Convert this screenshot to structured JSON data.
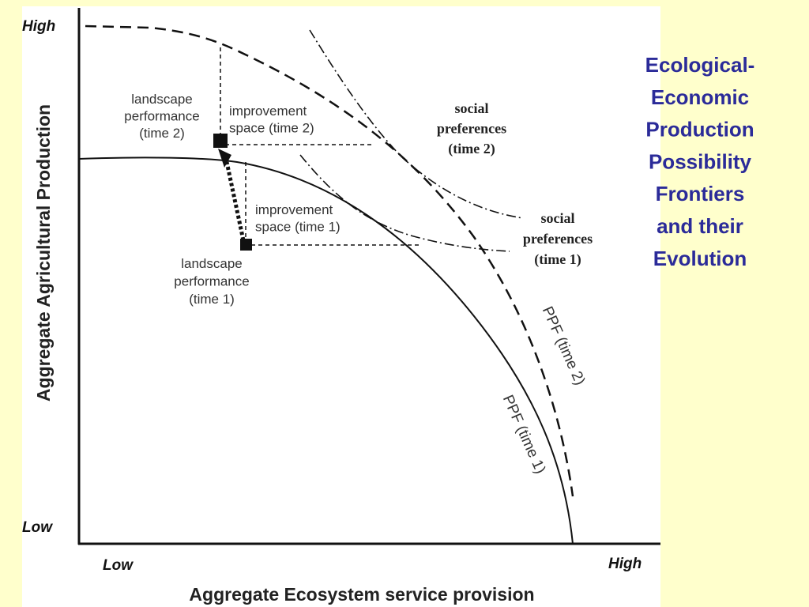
{
  "slide_title": [
    "Ecological-",
    "Economic",
    "Production",
    "Possibility",
    "Frontiers",
    "and their",
    "Evolution"
  ],
  "diagram": {
    "y_axis": {
      "title": "Aggregate Agricultural Production",
      "high": "High",
      "low": "Low"
    },
    "x_axis": {
      "title": "Aggregate Ecosystem service provision",
      "low": "Low",
      "high": "High"
    },
    "labels": {
      "landscape_performance_time2": [
        "landscape",
        "performance",
        "(time 2)"
      ],
      "improvement_space_time2": [
        "improvement",
        "space (time 2)"
      ],
      "social_preferences_time2": [
        "social",
        "preferences",
        "(time 2)"
      ],
      "improvement_space_time1": [
        "improvement",
        "space (time 1)"
      ],
      "landscape_performance_time1": [
        "landscape",
        "performance",
        "(time 1)"
      ],
      "social_preferences_time1": [
        "social",
        "preferences",
        "(time 1)"
      ],
      "ppf_time2": "PPF (time 2)",
      "ppf_time1": "PPF (time 1)"
    }
  }
}
